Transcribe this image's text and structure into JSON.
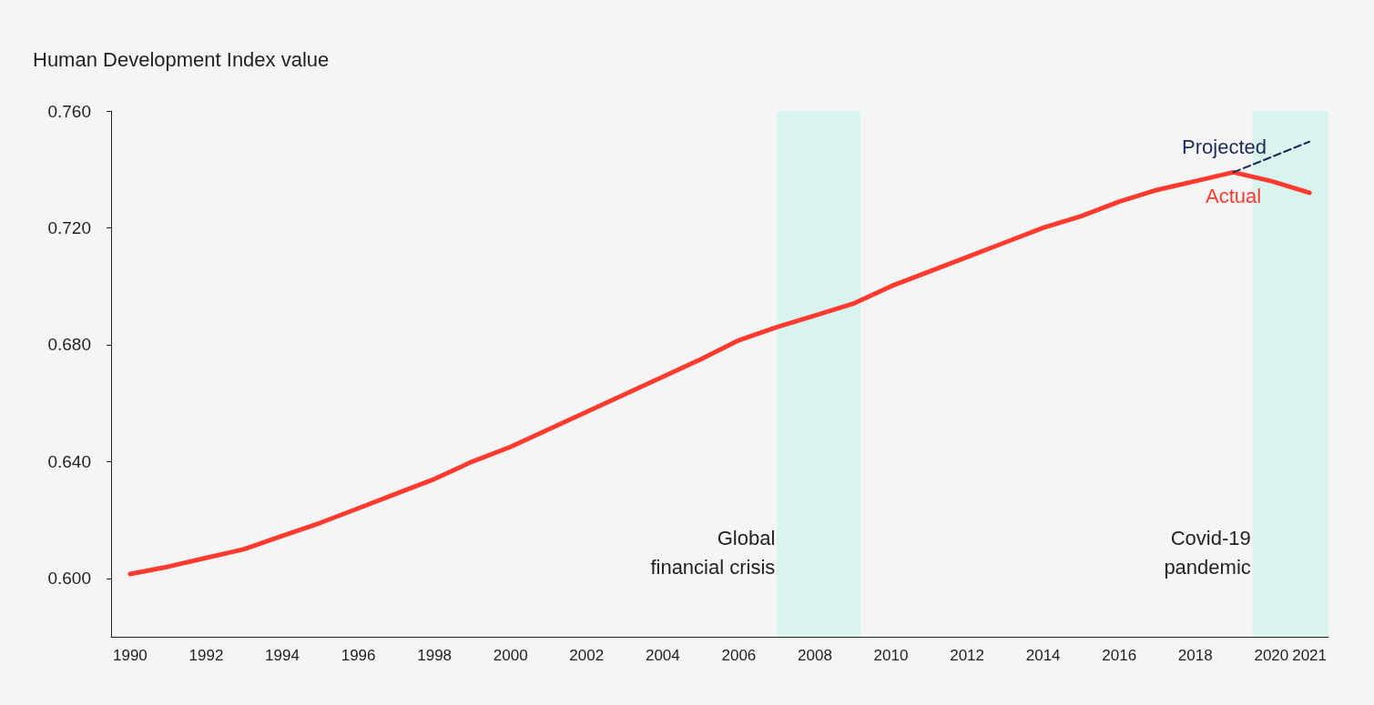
{
  "chart_data": {
    "type": "line",
    "ylabel": "Human Development Index value",
    "x": [
      1990,
      1991,
      1992,
      1993,
      1994,
      1995,
      1996,
      1997,
      1998,
      1999,
      2000,
      2001,
      2002,
      2003,
      2004,
      2005,
      2006,
      2007,
      2008,
      2009,
      2010,
      2011,
      2012,
      2013,
      2014,
      2015,
      2016,
      2017,
      2018,
      2019,
      2020,
      2021
    ],
    "series": [
      {
        "name": "Actual",
        "color": "#ff3b2f",
        "line_style": "solid",
        "values": [
          0.6015,
          0.604,
          0.607,
          0.61,
          0.6145,
          0.619,
          0.624,
          0.629,
          0.634,
          0.64,
          0.645,
          0.651,
          0.657,
          0.663,
          0.669,
          0.675,
          0.6815,
          0.686,
          0.69,
          0.694,
          0.7,
          0.705,
          0.71,
          0.715,
          0.72,
          0.724,
          0.729,
          0.733,
          0.736,
          0.739,
          0.736,
          0.732
        ]
      },
      {
        "name": "Projected",
        "color": "#1a2a5a",
        "line_style": "dashed",
        "x": [
          2019,
          2021
        ],
        "values": [
          0.739,
          0.7495
        ]
      }
    ],
    "xlim": [
      1989.5,
      2021.5
    ],
    "xticks": [
      1990,
      1992,
      1994,
      1996,
      1998,
      2000,
      2002,
      2004,
      2006,
      2008,
      2010,
      2012,
      2014,
      2016,
      2018,
      2020,
      2021
    ],
    "ylim": [
      0.58,
      0.76
    ],
    "yticks": [
      {
        "value": 0.6,
        "label": "0.600"
      },
      {
        "value": 0.64,
        "label": "0.640"
      },
      {
        "value": 0.68,
        "label": "0.680"
      },
      {
        "value": 0.72,
        "label": "0.720"
      },
      {
        "value": 0.76,
        "label": "0.760"
      }
    ],
    "bands": [
      {
        "axis": "x",
        "from": 2007,
        "to": 2009.2,
        "label": "Global\nfinancial crisis",
        "color": "#d9f3ee"
      },
      {
        "axis": "x",
        "from": 2019.5,
        "to": 2021.5,
        "label": "Covid-19\npandemic",
        "color": "#d9f3ee"
      }
    ],
    "grid": false,
    "marker": "none"
  }
}
